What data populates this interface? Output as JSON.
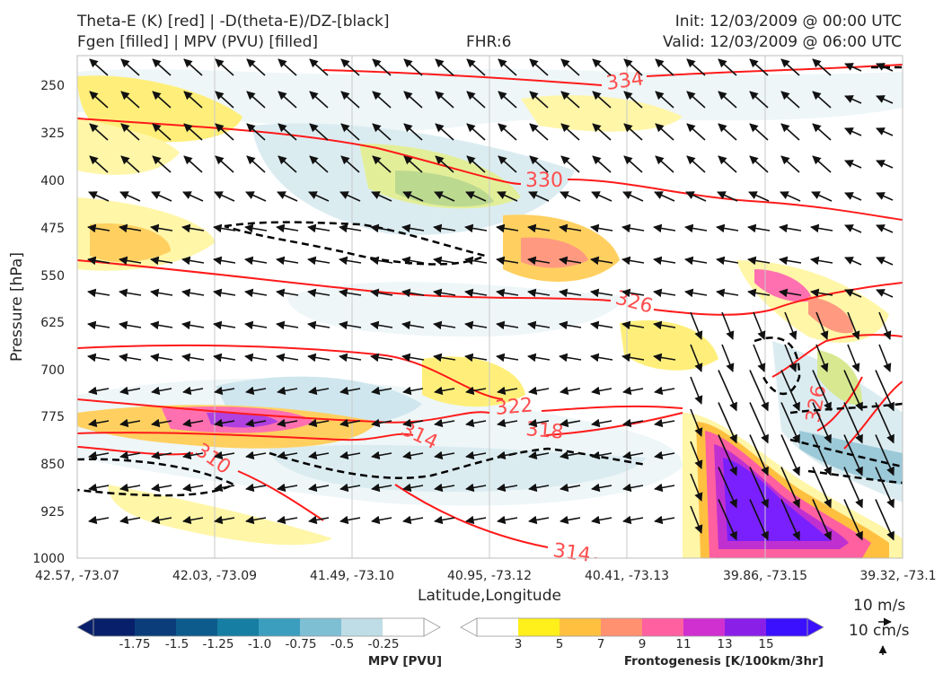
{
  "header": {
    "title_left_1": "Theta-E (K) [red] | -D(theta-E)/DZ-[black]",
    "title_left_2": "Fgen [filled] | MPV (PVU) [filled]",
    "fhr": "FHR:6",
    "init": "Init: 12/03/2009 @ 00:00 UTC",
    "valid": "Valid: 12/03/2009 @ 06:00 UTC"
  },
  "chart_data": {
    "type": "cross-section",
    "ylabel": "Pressure [hPa]",
    "xlabel": "Latitude,Longitude",
    "y_axis_inverted": true,
    "ylim": [
      1000,
      210
    ],
    "y_ticks": [
      "250",
      "325",
      "400",
      "475",
      "550",
      "625",
      "700",
      "775",
      "850",
      "925",
      "1000"
    ],
    "x_ticks": [
      "42.57, -73.07",
      "42.03, -73.09",
      "41.49, -73.10",
      "40.95, -73.12",
      "40.41, -73.13",
      "39.86, -73.15",
      "39.32, -73.1"
    ],
    "grid": true,
    "theta_e_contour_labels": [
      "334",
      "330",
      "326",
      "322",
      "318",
      "314",
      "314",
      "310",
      "326"
    ],
    "theta_e_color": "#ff1a1a",
    "lapse_contour_color": "#000000",
    "wind_scale": {
      "horizontal": "10 m/s",
      "vertical": "10 cm/s"
    },
    "colorbar_mpv": {
      "label": "MPV [PVU]",
      "ticks": [
        "-1.75",
        "-1.5",
        "-1.25",
        "-1.0",
        "-0.75",
        "-0.5",
        "-0.25"
      ],
      "colors": [
        "#08206b",
        "#0a3d7a",
        "#0d5b8c",
        "#167ea2",
        "#3b9ebf",
        "#7fbfd4",
        "#bfdde6",
        "#ffffff"
      ]
    },
    "colorbar_fgen": {
      "label": "Frontogenesis [K/100km/3hr]",
      "ticks": [
        "3",
        "5",
        "7",
        "9",
        "11",
        "13",
        "15"
      ],
      "colors": [
        "#ffffff",
        "#ffef1a",
        "#ffc040",
        "#ff9070",
        "#ff60a0",
        "#d030d0",
        "#8a20e8",
        "#3a10ff"
      ]
    }
  }
}
